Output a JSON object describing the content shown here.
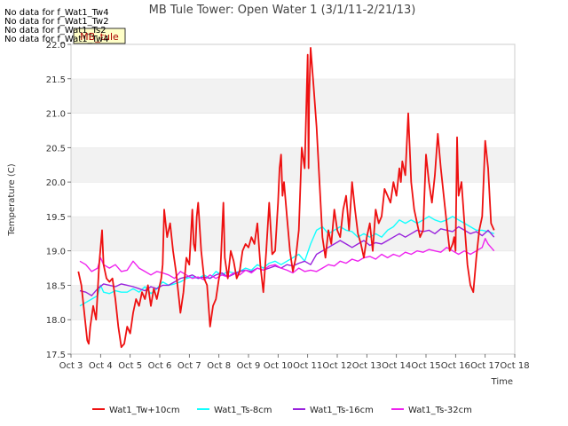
{
  "chart_data": {
    "type": "line",
    "title": "MB Tule Tower: Open Water 1 (3/1/11-2/21/13)",
    "xlabel": "Time",
    "ylabel": "Temperature (C)",
    "xlim": [
      3,
      18
    ],
    "ylim": [
      17.5,
      22.0
    ],
    "x_tick_labels": [
      "Oct 3",
      "Oct 4",
      "Oct 5",
      "Oct 6",
      "Oct 7",
      "Oct 8",
      "Oct 9",
      "Oct 10",
      "Oct 11",
      "Oct 12",
      "Oct 13",
      "Oct 14",
      "Oct 15",
      "Oct 16",
      "Oct 17",
      "Oct 18"
    ],
    "y_ticks": [
      17.5,
      18.0,
      18.5,
      19.0,
      19.5,
      20.0,
      20.5,
      21.0,
      21.5,
      22.0
    ],
    "y_tick_labels": [
      "17.5",
      "18.0",
      "18.5",
      "19.0",
      "19.5",
      "20.0",
      "20.5",
      "21.0",
      "21.5",
      "22.0"
    ],
    "grid_bands": true,
    "legend_position": "bottom",
    "no_data_messages": [
      "No data for f_Wat1_Tw4",
      "No data for f_Wat1_Tw2",
      "No data for f_Wat1_Ts2",
      "No data for f_Wat1_Tw4"
    ],
    "box_label": "MB_tule",
    "series": [
      {
        "name": "Wat1_Tw+10cm",
        "color": "#ee1111",
        "x": [
          3.25,
          3.35,
          3.45,
          3.55,
          3.6,
          3.65,
          3.75,
          3.85,
          3.95,
          4.05,
          4.1,
          4.2,
          4.3,
          4.4,
          4.5,
          4.6,
          4.7,
          4.8,
          4.9,
          5.0,
          5.1,
          5.2,
          5.3,
          5.4,
          5.5,
          5.6,
          5.7,
          5.8,
          5.9,
          6.0,
          6.05,
          6.1,
          6.15,
          6.25,
          6.35,
          6.45,
          6.55,
          6.65,
          6.7,
          6.8,
          6.9,
          7.0,
          7.05,
          7.1,
          7.15,
          7.2,
          7.25,
          7.3,
          7.4,
          7.5,
          7.6,
          7.7,
          7.8,
          7.9,
          8.0,
          8.05,
          8.1,
          8.15,
          8.2,
          8.3,
          8.4,
          8.5,
          8.6,
          8.7,
          8.8,
          8.9,
          9.0,
          9.1,
          9.2,
          9.3,
          9.4,
          9.5,
          9.6,
          9.7,
          9.8,
          9.9,
          10.0,
          10.05,
          10.1,
          10.15,
          10.2,
          10.3,
          10.4,
          10.5,
          10.6,
          10.7,
          10.8,
          10.9,
          11.0,
          11.03,
          11.05,
          11.1,
          11.2,
          11.3,
          11.4,
          11.5,
          11.6,
          11.7,
          11.8,
          11.9,
          12.0,
          12.1,
          12.2,
          12.3,
          12.4,
          12.5,
          12.6,
          12.7,
          12.8,
          12.9,
          13.0,
          13.1,
          13.2,
          13.3,
          13.4,
          13.5,
          13.6,
          13.7,
          13.8,
          13.9,
          14.0,
          14.1,
          14.15,
          14.2,
          14.3,
          14.4,
          14.5,
          14.6,
          14.7,
          14.8,
          14.9,
          15.0,
          15.1,
          15.2,
          15.3,
          15.4,
          15.5,
          15.6,
          15.7,
          15.8,
          15.9,
          15.95,
          16.0,
          16.05,
          16.1,
          16.2,
          16.3,
          16.4,
          16.5,
          16.6,
          16.7,
          16.8,
          16.9,
          17.0,
          17.1,
          17.2,
          17.3
        ],
        "y": [
          18.7,
          18.5,
          18.1,
          17.7,
          17.65,
          17.9,
          18.2,
          18.0,
          18.8,
          19.3,
          18.8,
          18.6,
          18.55,
          18.6,
          18.3,
          17.9,
          17.6,
          17.65,
          17.9,
          17.8,
          18.1,
          18.3,
          18.2,
          18.4,
          18.3,
          18.5,
          18.2,
          18.45,
          18.3,
          18.5,
          18.6,
          18.8,
          19.6,
          19.2,
          19.4,
          19.0,
          18.7,
          18.3,
          18.1,
          18.4,
          18.9,
          18.8,
          19.2,
          19.6,
          19.1,
          19.0,
          19.5,
          19.7,
          19.0,
          18.6,
          18.5,
          17.9,
          18.2,
          18.3,
          18.6,
          18.7,
          19.2,
          19.7,
          18.9,
          18.6,
          19.0,
          18.85,
          18.6,
          18.7,
          19.0,
          19.1,
          19.05,
          19.2,
          19.1,
          19.4,
          18.8,
          18.4,
          19.0,
          19.7,
          18.95,
          19.0,
          19.7,
          20.2,
          20.4,
          19.8,
          20.0,
          19.5,
          19.0,
          18.7,
          18.9,
          19.3,
          20.5,
          20.2,
          21.85,
          20.2,
          21.2,
          21.95,
          21.4,
          20.8,
          20.0,
          19.2,
          18.9,
          19.3,
          19.1,
          19.6,
          19.3,
          19.2,
          19.6,
          19.8,
          19.3,
          20.0,
          19.6,
          19.25,
          19.1,
          18.9,
          19.2,
          19.4,
          19.0,
          19.6,
          19.4,
          19.5,
          19.9,
          19.8,
          19.7,
          20.0,
          19.8,
          20.2,
          20.0,
          20.3,
          20.1,
          21.0,
          20.0,
          19.6,
          19.4,
          19.2,
          19.3,
          20.4,
          20.0,
          19.7,
          20.1,
          20.7,
          20.2,
          19.8,
          19.4,
          19.0,
          19.1,
          19.2,
          19.0,
          20.65,
          19.8,
          20.0,
          19.4,
          18.8,
          18.5,
          18.4,
          18.9,
          19.3,
          19.5,
          20.6,
          20.2,
          19.4,
          19.3
        ],
        "glow": false
      },
      {
        "name": "Wat1_Ts-8cm",
        "color": "#11ffff",
        "x": [
          3.3,
          3.5,
          3.7,
          3.9,
          4.0,
          4.1,
          4.3,
          4.5,
          4.7,
          4.9,
          5.1,
          5.3,
          5.5,
          5.7,
          5.9,
          6.1,
          6.3,
          6.5,
          6.7,
          6.9,
          7.1,
          7.3,
          7.5,
          7.7,
          7.9,
          8.1,
          8.3,
          8.5,
          8.7,
          8.9,
          9.1,
          9.3,
          9.5,
          9.7,
          9.9,
          10.1,
          10.3,
          10.5,
          10.7,
          10.9,
          11.1,
          11.3,
          11.5,
          11.7,
          11.9,
          12.1,
          12.3,
          12.5,
          12.7,
          12.9,
          13.1,
          13.3,
          13.5,
          13.7,
          13.9,
          14.1,
          14.3,
          14.5,
          14.7,
          14.9,
          15.1,
          15.3,
          15.5,
          15.7,
          15.9,
          16.1,
          16.3,
          16.5,
          16.7,
          16.9,
          17.1,
          17.3
        ],
        "y": [
          18.2,
          18.25,
          18.3,
          18.35,
          18.5,
          18.4,
          18.38,
          18.42,
          18.4,
          18.4,
          18.45,
          18.4,
          18.48,
          18.38,
          18.45,
          18.55,
          18.5,
          18.52,
          18.55,
          18.6,
          18.62,
          18.6,
          18.65,
          18.6,
          18.7,
          18.65,
          18.7,
          18.68,
          18.7,
          18.75,
          18.72,
          18.8,
          18.75,
          18.82,
          18.85,
          18.8,
          18.85,
          18.9,
          18.95,
          18.85,
          19.1,
          19.3,
          19.35,
          19.25,
          19.3,
          19.35,
          19.3,
          19.28,
          19.2,
          19.25,
          19.2,
          19.25,
          19.2,
          19.3,
          19.35,
          19.45,
          19.4,
          19.45,
          19.4,
          19.45,
          19.5,
          19.45,
          19.42,
          19.45,
          19.5,
          19.45,
          19.4,
          19.35,
          19.3,
          19.3,
          19.28,
          19.25
        ]
      },
      {
        "name": "Wat1_Ts-16cm",
        "color": "#9922dd",
        "x": [
          3.3,
          3.5,
          3.7,
          3.9,
          4.1,
          4.3,
          4.5,
          4.7,
          4.9,
          5.1,
          5.3,
          5.5,
          5.7,
          5.9,
          6.1,
          6.3,
          6.5,
          6.7,
          6.9,
          7.1,
          7.3,
          7.5,
          7.7,
          7.9,
          8.1,
          8.3,
          8.5,
          8.7,
          8.9,
          9.1,
          9.3,
          9.5,
          9.7,
          9.9,
          10.1,
          10.3,
          10.5,
          10.7,
          10.9,
          11.1,
          11.3,
          11.5,
          11.7,
          11.9,
          12.1,
          12.3,
          12.5,
          12.7,
          12.9,
          13.1,
          13.3,
          13.5,
          13.7,
          13.9,
          14.1,
          14.3,
          14.5,
          14.7,
          14.9,
          15.1,
          15.3,
          15.5,
          15.7,
          15.9,
          16.1,
          16.3,
          16.5,
          16.7,
          16.9,
          17.1,
          17.3
        ],
        "y": [
          18.42,
          18.4,
          18.35,
          18.45,
          18.52,
          18.5,
          18.48,
          18.52,
          18.5,
          18.48,
          18.45,
          18.42,
          18.48,
          18.45,
          18.5,
          18.5,
          18.55,
          18.6,
          18.62,
          18.65,
          18.6,
          18.62,
          18.6,
          18.65,
          18.68,
          18.62,
          18.66,
          18.7,
          18.72,
          18.7,
          18.75,
          18.72,
          18.75,
          18.78,
          18.75,
          18.8,
          18.78,
          18.82,
          18.85,
          18.8,
          18.95,
          19.0,
          19.05,
          19.1,
          19.15,
          19.1,
          19.05,
          19.1,
          19.15,
          19.08,
          19.12,
          19.1,
          19.15,
          19.2,
          19.25,
          19.2,
          19.25,
          19.3,
          19.28,
          19.3,
          19.25,
          19.32,
          19.3,
          19.28,
          19.35,
          19.3,
          19.25,
          19.28,
          19.22,
          19.3,
          19.2
        ]
      },
      {
        "name": "Wat1_Ts-32cm",
        "color": "#ee22ee",
        "x": [
          3.3,
          3.5,
          3.7,
          3.9,
          4.0,
          4.1,
          4.3,
          4.5,
          4.7,
          4.9,
          5.1,
          5.3,
          5.5,
          5.7,
          5.9,
          6.1,
          6.3,
          6.5,
          6.7,
          6.9,
          7.1,
          7.3,
          7.5,
          7.7,
          7.9,
          8.1,
          8.3,
          8.5,
          8.7,
          8.9,
          9.1,
          9.3,
          9.5,
          9.7,
          9.9,
          10.1,
          10.3,
          10.5,
          10.7,
          10.9,
          11.1,
          11.3,
          11.5,
          11.7,
          11.9,
          12.1,
          12.3,
          12.5,
          12.7,
          12.9,
          13.1,
          13.3,
          13.5,
          13.7,
          13.9,
          14.1,
          14.3,
          14.5,
          14.7,
          14.9,
          15.1,
          15.3,
          15.5,
          15.7,
          15.9,
          16.1,
          16.3,
          16.5,
          16.7,
          16.9,
          17.0,
          17.1,
          17.3
        ],
        "y": [
          18.85,
          18.8,
          18.7,
          18.75,
          18.9,
          18.8,
          18.75,
          18.8,
          18.7,
          18.72,
          18.85,
          18.75,
          18.7,
          18.65,
          18.7,
          18.68,
          18.65,
          18.6,
          18.7,
          18.65,
          18.6,
          18.62,
          18.58,
          18.65,
          18.6,
          18.65,
          18.62,
          18.68,
          18.65,
          18.72,
          18.68,
          18.75,
          18.72,
          18.78,
          18.8,
          18.75,
          18.72,
          18.68,
          18.75,
          18.7,
          18.72,
          18.7,
          18.75,
          18.8,
          18.78,
          18.85,
          18.82,
          18.88,
          18.85,
          18.9,
          18.92,
          18.88,
          18.95,
          18.9,
          18.95,
          18.92,
          18.98,
          18.95,
          19.0,
          18.98,
          19.02,
          19.0,
          18.98,
          19.05,
          19.0,
          18.95,
          19.0,
          18.95,
          19.0,
          19.05,
          19.18,
          19.1,
          19.0
        ]
      }
    ]
  }
}
